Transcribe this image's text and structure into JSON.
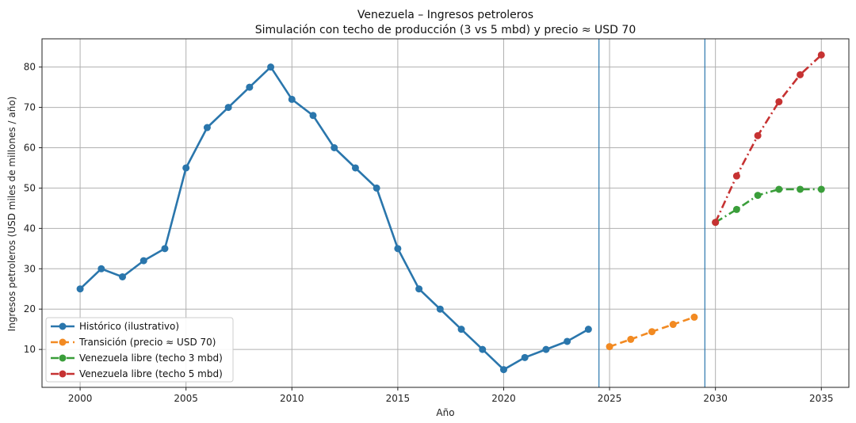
{
  "chart_data": {
    "type": "line",
    "title": "Venezuela – Ingresos petroleros",
    "subtitle": "Simulación con techo de producción (3 vs 5 mbd) y precio ≈ USD 70",
    "xlabel": "Año",
    "ylabel": "Ingresos petroleros (USD miles de millones / año)",
    "xlim": [
      1998.2,
      2036.3
    ],
    "ylim": [
      0.6,
      87
    ],
    "xticks": [
      2000,
      2005,
      2010,
      2015,
      2020,
      2025,
      2030,
      2035
    ],
    "yticks": [
      10,
      20,
      30,
      40,
      50,
      60,
      70,
      80
    ],
    "grid": true,
    "legend_position": "lower-left",
    "vlines": [
      2024.5,
      2029.5
    ],
    "series": [
      {
        "name": "Histórico (ilustrativo)",
        "color": "#2a76ac",
        "style": "solid",
        "x": [
          2000,
          2001,
          2002,
          2003,
          2004,
          2005,
          2006,
          2007,
          2008,
          2009,
          2010,
          2011,
          2012,
          2013,
          2014,
          2015,
          2016,
          2017,
          2018,
          2019,
          2020,
          2021,
          2022,
          2023,
          2024
        ],
        "y": [
          25,
          30,
          28,
          32,
          35,
          55,
          65,
          70,
          75,
          80,
          72,
          68,
          60,
          55,
          50,
          35,
          25,
          20,
          15,
          10,
          5,
          8,
          10,
          12,
          15
        ]
      },
      {
        "name": "Transición (precio ≈ USD 70)",
        "color": "#f28a22",
        "style": "dashed",
        "x": [
          2025,
          2026,
          2027,
          2028,
          2029
        ],
        "y": [
          10.7,
          12.5,
          14.4,
          16.2,
          18.0
        ]
      },
      {
        "name": "Venezuela libre (techo 3 mbd)",
        "color": "#3a9e3a",
        "style": "dashdot",
        "x": [
          2030,
          2031,
          2032,
          2033,
          2034,
          2035
        ],
        "y": [
          41.5,
          44.7,
          48.2,
          49.7,
          49.7,
          49.7
        ]
      },
      {
        "name": "Venezuela libre (techo 5 mbd)",
        "color": "#c63232",
        "style": "dashdot",
        "x": [
          2030,
          2031,
          2032,
          2033,
          2034,
          2035
        ],
        "y": [
          41.5,
          53.0,
          63.0,
          71.4,
          78.1,
          83.0
        ]
      }
    ]
  }
}
